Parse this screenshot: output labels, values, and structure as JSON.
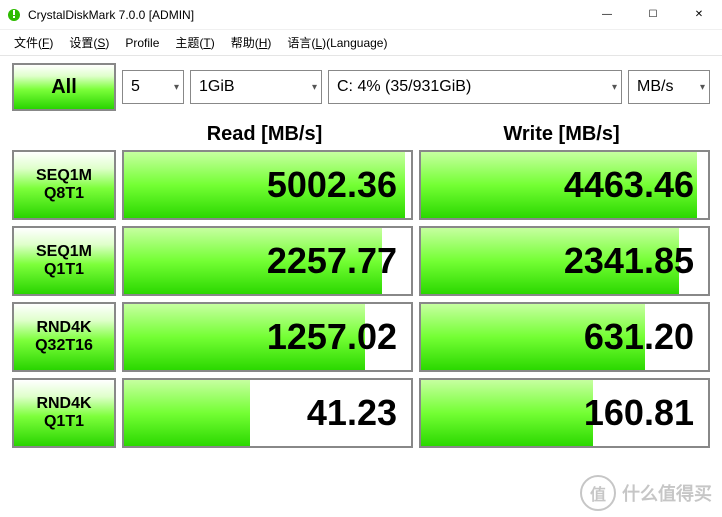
{
  "window": {
    "title": "CrystalDiskMark 7.0.0   [ADMIN]"
  },
  "menu": {
    "items": [
      {
        "label": "文件",
        "key": "F"
      },
      {
        "label": "设置",
        "key": "S"
      },
      {
        "label": "Profile",
        "key": ""
      },
      {
        "label": "主题",
        "key": "T"
      },
      {
        "label": "帮助",
        "key": "H"
      },
      {
        "label": "语言",
        "key": "L",
        "suffix": "(Language)"
      }
    ]
  },
  "controls": {
    "all_label": "All",
    "count": "5",
    "size": "1GiB",
    "drive": "C: 4% (35/931GiB)",
    "unit": "MB/s"
  },
  "headers": {
    "read": "Read [MB/s]",
    "write": "Write [MB/s]"
  },
  "tests": [
    {
      "name1": "SEQ1M",
      "name2": "Q8T1",
      "read": "5002.36",
      "write": "4463.46",
      "read_fill": 98,
      "write_fill": 96
    },
    {
      "name1": "SEQ1M",
      "name2": "Q1T1",
      "read": "2257.77",
      "write": "2341.85",
      "read_fill": 90,
      "write_fill": 90
    },
    {
      "name1": "RND4K",
      "name2": "Q32T16",
      "read": "1257.02",
      "write": "631.20",
      "read_fill": 84,
      "write_fill": 78
    },
    {
      "name1": "RND4K",
      "name2": "Q1T1",
      "read": "41.23",
      "write": "160.81",
      "read_fill": 44,
      "write_fill": 60
    }
  ],
  "watermark": {
    "symbol": "值",
    "text": "什么值得买"
  },
  "colors": {
    "gradient_top": "#ffffff",
    "gradient_mid": "#7dff3b",
    "gradient_bottom": "#29d400",
    "border": "#888888"
  }
}
